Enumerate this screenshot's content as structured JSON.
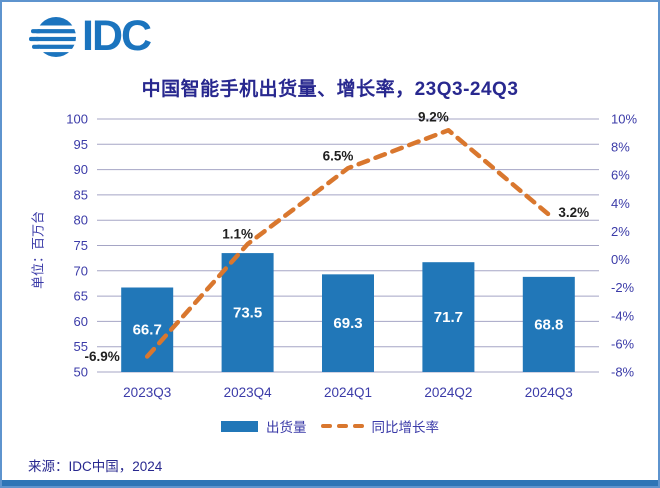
{
  "logo": {
    "text": "IDC"
  },
  "source": "来源：IDC中国，2024",
  "colors": {
    "brand_blue": "#1B74BE",
    "title_text": "#28288F",
    "axis_text": "#3B3BA8",
    "bar_fill": "#2177B8",
    "bar_label": "#FFFFFF",
    "line_orange": "#D9772E",
    "growth_label": "#1F1F1F",
    "gridline": "#A5A5C5",
    "frame_border": "#5E94CE",
    "bottom_bar": "#2E75B6",
    "background": "#FFFFFF"
  },
  "chart_data": {
    "type": "bar+line combo",
    "title": "中国智能手机出货量、增长率，23Q3-24Q3",
    "categories": [
      "2023Q3",
      "2023Q4",
      "2024Q1",
      "2024Q2",
      "2024Q3"
    ],
    "series": [
      {
        "name": "出货量",
        "type": "bar",
        "axis": "left",
        "values": [
          66.7,
          73.5,
          69.3,
          71.7,
          68.8
        ],
        "value_labels": [
          "66.7",
          "73.5",
          "69.3",
          "71.7",
          "68.8"
        ],
        "color": "#2177B8"
      },
      {
        "name": "同比增长率",
        "type": "line",
        "style": "dashed",
        "axis": "right",
        "values": [
          -6.9,
          1.1,
          6.5,
          9.2,
          3.2
        ],
        "value_labels": [
          "-6.9%",
          "1.1%",
          "6.5%",
          "9.2%",
          "3.2%"
        ],
        "color": "#D9772E"
      }
    ],
    "left_axis": {
      "label": "单位：百万台",
      "min": 50,
      "max": 100,
      "step": 5,
      "tick_labels": [
        "50",
        "55",
        "60",
        "65",
        "70",
        "75",
        "80",
        "85",
        "90",
        "95",
        "100"
      ]
    },
    "right_axis": {
      "min": -8,
      "max": 10,
      "step": 2,
      "suffix": "%",
      "tick_labels": [
        "-8%",
        "-6%",
        "-4%",
        "-2%",
        "0%",
        "2%",
        "4%",
        "6%",
        "8%",
        "10%"
      ]
    },
    "grid": true,
    "legend_position": "bottom"
  }
}
